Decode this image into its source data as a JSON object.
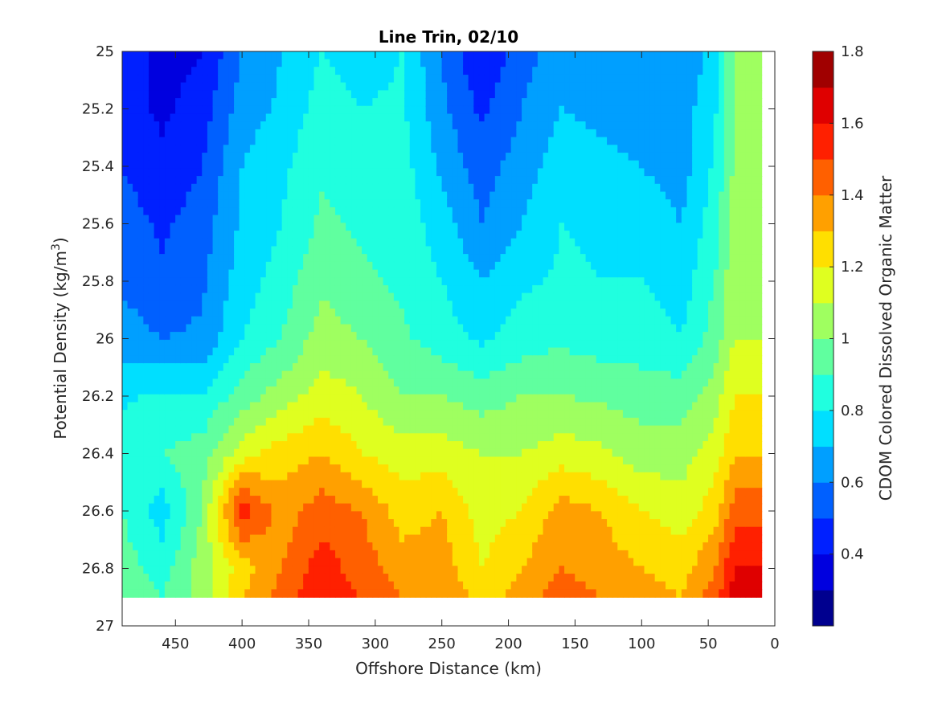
{
  "chart_data": {
    "type": "heatmap",
    "subtype": "filled-contour",
    "title": "Line Trin, 02/10",
    "xlabel": "Offshore Distance (km)",
    "ylabel": "Potential Density (kg/m",
    "ylabel_superscript": "3",
    "ylabel_close": ")",
    "colorbar_label": "CDOM Colored Dissolved Organic Matter",
    "colormap": "jet",
    "xlim": [
      490,
      0
    ],
    "x_reversed": true,
    "ylim": [
      25,
      27
    ],
    "y_reversed": true,
    "xticks": [
      450,
      400,
      350,
      300,
      250,
      200,
      150,
      100,
      50,
      0
    ],
    "yticks": [
      25,
      25.2,
      25.4,
      25.6,
      25.8,
      26,
      26.2,
      26.4,
      26.6,
      26.8,
      27
    ],
    "yticklabels": [
      "25",
      "25.2",
      "25.4",
      "25.6",
      "25.8",
      "26",
      "26.2",
      "26.4",
      "26.6",
      "26.8",
      "27"
    ],
    "colorbar_range": [
      0.2,
      1.8
    ],
    "colorbar_levels": [
      0.2,
      0.3,
      0.4,
      0.5,
      0.6,
      0.7,
      0.8,
      0.9,
      1.0,
      1.1,
      1.2,
      1.3,
      1.4,
      1.5,
      1.6,
      1.7,
      1.8
    ],
    "colorbar_ticks": [
      0.4,
      0.6,
      0.8,
      1.0,
      1.2,
      1.4,
      1.6,
      1.8
    ],
    "colorbar_ticklabels": [
      "0.4",
      "0.6",
      "0.8",
      "1",
      "1.2",
      "1.4",
      "1.6",
      "1.8"
    ],
    "level_colors": [
      "#00008F",
      "#0000DF",
      "#0020FF",
      "#0060FF",
      "#009FFF",
      "#00DFFF",
      "#20FFDF",
      "#60FF9F",
      "#9FFF60",
      "#DFFF20",
      "#FFDF00",
      "#FFA000",
      "#FF6000",
      "#FF2000",
      "#DF0000",
      "#A00000"
    ],
    "x": [
      490,
      460,
      430,
      400,
      370,
      340,
      310,
      280,
      250,
      220,
      190,
      160,
      130,
      100,
      70,
      45,
      30,
      10
    ],
    "y": [
      25.0,
      25.2,
      25.4,
      25.6,
      25.8,
      26.0,
      26.2,
      26.4,
      26.6,
      26.8,
      26.9
    ],
    "z": [
      [
        0.5,
        0.35,
        0.4,
        0.6,
        0.7,
        0.8,
        0.75,
        0.8,
        0.6,
        0.4,
        0.55,
        0.65,
        0.6,
        0.65,
        0.6,
        0.75,
        1.0,
        1.0
      ],
      [
        0.45,
        0.38,
        0.45,
        0.65,
        0.72,
        0.85,
        0.8,
        0.82,
        0.62,
        0.48,
        0.6,
        0.7,
        0.68,
        0.66,
        0.65,
        0.78,
        1.0,
        1.0
      ],
      [
        0.5,
        0.42,
        0.5,
        0.7,
        0.78,
        0.88,
        0.85,
        0.84,
        0.68,
        0.55,
        0.65,
        0.75,
        0.72,
        0.7,
        0.65,
        0.82,
        1.02,
        1.0
      ],
      [
        0.55,
        0.48,
        0.55,
        0.72,
        0.8,
        0.92,
        0.88,
        0.86,
        0.75,
        0.6,
        0.7,
        0.8,
        0.78,
        0.76,
        0.7,
        0.85,
        1.05,
        1.05
      ],
      [
        0.58,
        0.52,
        0.58,
        0.75,
        0.85,
        0.98,
        0.92,
        0.88,
        0.8,
        0.7,
        0.78,
        0.82,
        0.8,
        0.8,
        0.75,
        0.9,
        1.08,
        null
      ],
      [
        0.65,
        0.6,
        0.62,
        0.8,
        0.9,
        1.05,
        1.0,
        0.92,
        0.85,
        0.78,
        0.85,
        0.88,
        0.85,
        0.85,
        0.8,
        0.95,
        1.1,
        null
      ],
      [
        0.78,
        0.82,
        0.8,
        0.95,
        1.05,
        1.15,
        1.1,
        1.0,
        1.0,
        0.95,
        1.0,
        1.0,
        0.98,
        0.95,
        0.95,
        1.05,
        1.2,
        null
      ],
      [
        0.85,
        0.9,
        0.95,
        1.15,
        1.25,
        1.3,
        1.2,
        1.15,
        1.15,
        1.1,
        1.1,
        1.15,
        1.12,
        1.05,
        1.05,
        1.15,
        1.3,
        null
      ],
      [
        0.9,
        0.75,
        1.0,
        1.55,
        1.35,
        1.45,
        1.4,
        1.25,
        1.3,
        1.15,
        1.2,
        1.35,
        1.3,
        1.2,
        1.15,
        1.25,
        1.45,
        null
      ],
      [
        0.95,
        0.85,
        1.05,
        1.25,
        1.4,
        1.55,
        1.45,
        1.35,
        1.35,
        1.2,
        1.3,
        1.4,
        1.35,
        1.3,
        1.25,
        1.4,
        1.6,
        null
      ],
      [
        0.98,
        0.9,
        1.05,
        1.3,
        1.45,
        1.6,
        1.5,
        1.4,
        1.4,
        1.25,
        1.35,
        1.45,
        1.4,
        1.35,
        1.3,
        1.45,
        1.65,
        null
      ]
    ]
  }
}
